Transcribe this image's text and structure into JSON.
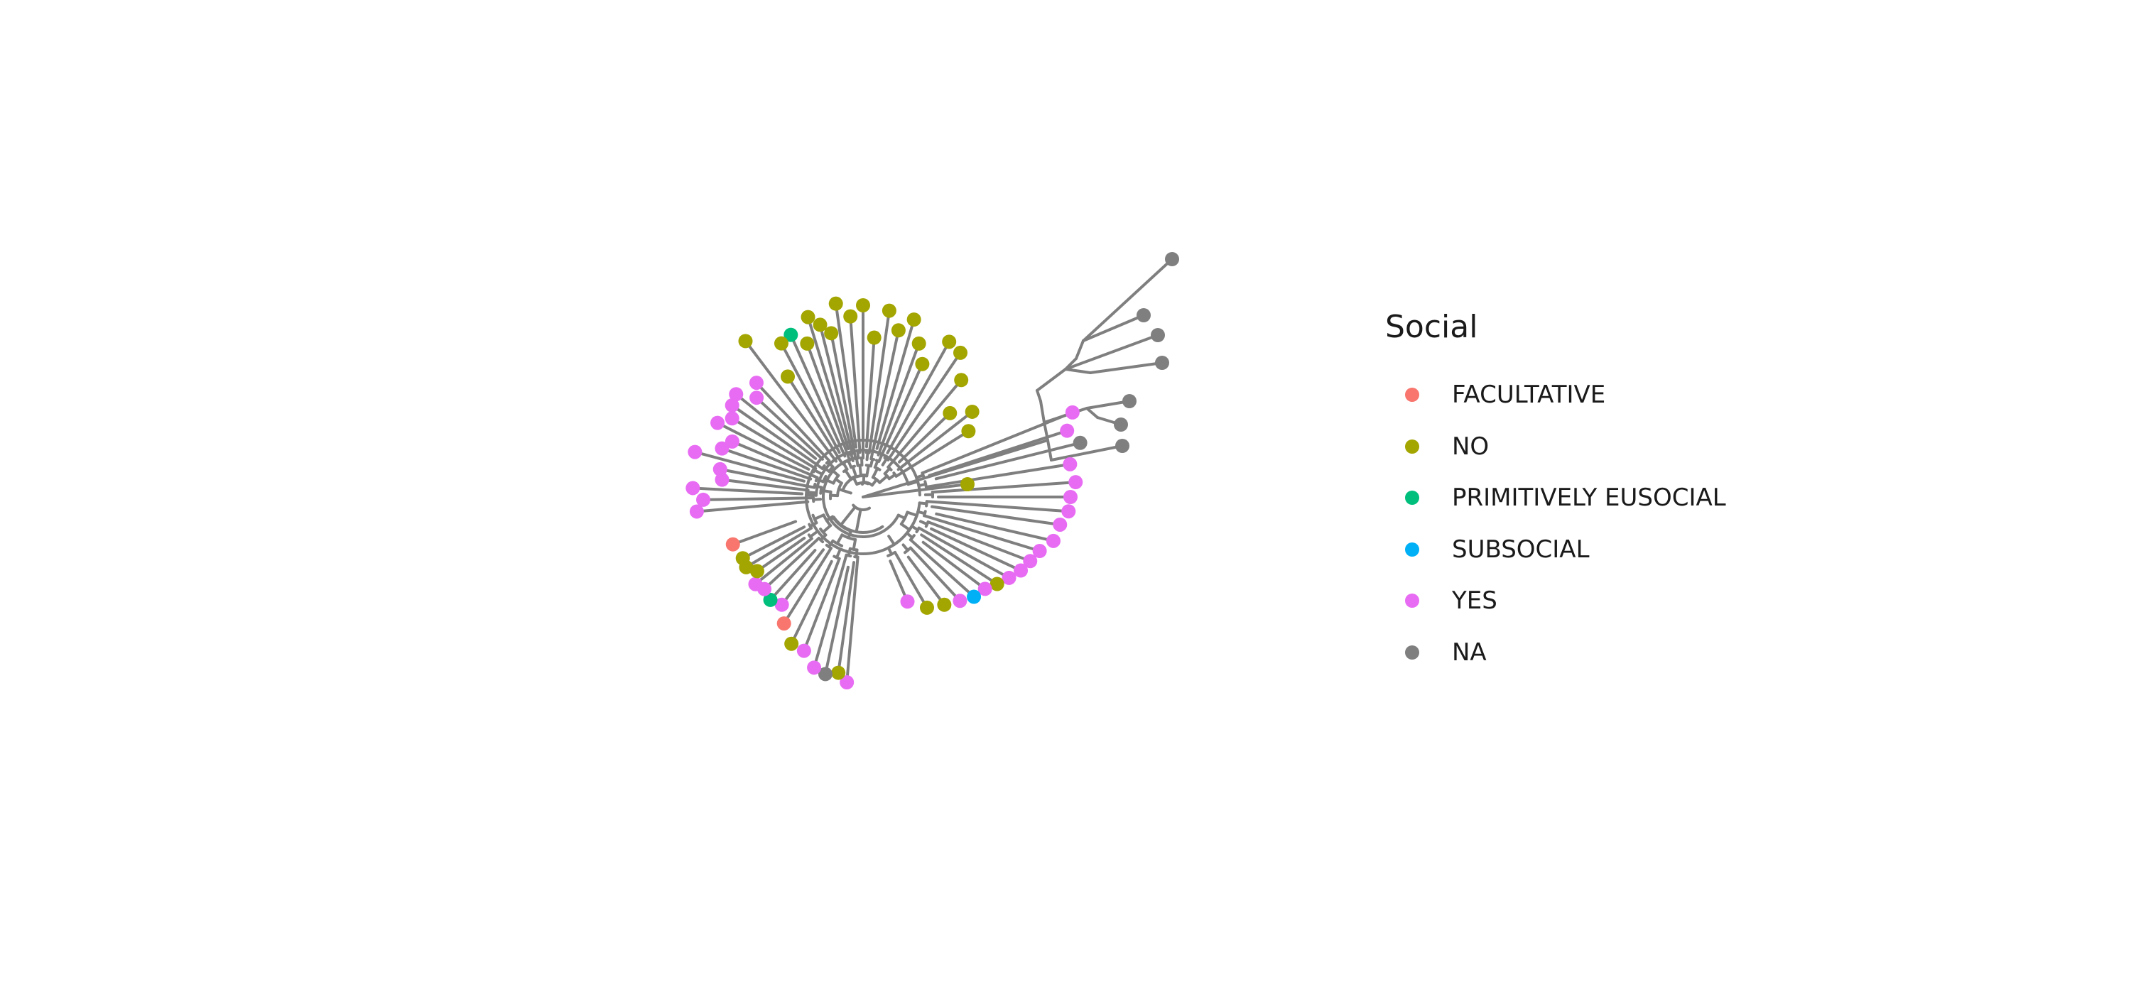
{
  "legend": {
    "title": "Social",
    "items": [
      {
        "label": "FACULTATIVE",
        "color": "#F8766D"
      },
      {
        "label": "NO",
        "color": "#A3A500"
      },
      {
        "label": "PRIMITIVELY EUSOCIAL",
        "color": "#00BF7D"
      },
      {
        "label": "SUBSOCIAL",
        "color": "#00B0F6"
      },
      {
        "label": "YES",
        "color": "#E76BF3"
      },
      {
        "label": "NA",
        "color": "#7F7F7F"
      }
    ]
  },
  "tree": {
    "branch_color": "#7F7F7F",
    "tip_states": {
      "outgroup": [
        "NA",
        "NA",
        "NA",
        "NA",
        "NA",
        "NA",
        "NA"
      ],
      "lower_right": [
        "YES",
        "YES",
        "NA",
        "YES",
        "YES",
        "YES",
        "YES",
        "YES",
        "YES",
        "YES",
        "YES",
        "YES",
        "YES",
        "NO",
        "YES",
        "SUBSOCIAL",
        "YES",
        "NO",
        "NO",
        "YES"
      ],
      "lower_left": [
        "YES",
        "NO",
        "NA",
        "YES",
        "YES",
        "NO",
        "FACULTATIVE",
        "YES",
        "PRIMITIVELY EUSOCIAL",
        "YES",
        "YES",
        "NO",
        "NO",
        "NO",
        "FACULTATIVE"
      ],
      "left": [
        "YES",
        "YES",
        "YES",
        "YES",
        "YES",
        "YES",
        "YES",
        "YES",
        "YES",
        "YES",
        "YES",
        "YES",
        "YES",
        "YES"
      ],
      "upper": [
        "NO",
        "NO",
        "NO",
        "NO",
        "NO",
        "NO",
        "NO",
        "NO",
        "NO",
        "NO",
        "NO",
        "NO",
        "NO",
        "NO",
        "NO",
        "NO",
        "NO",
        "NO",
        "NO",
        "PRIMITIVELY EUSOCIAL",
        "NO",
        "NO",
        "NO"
      ]
    }
  }
}
